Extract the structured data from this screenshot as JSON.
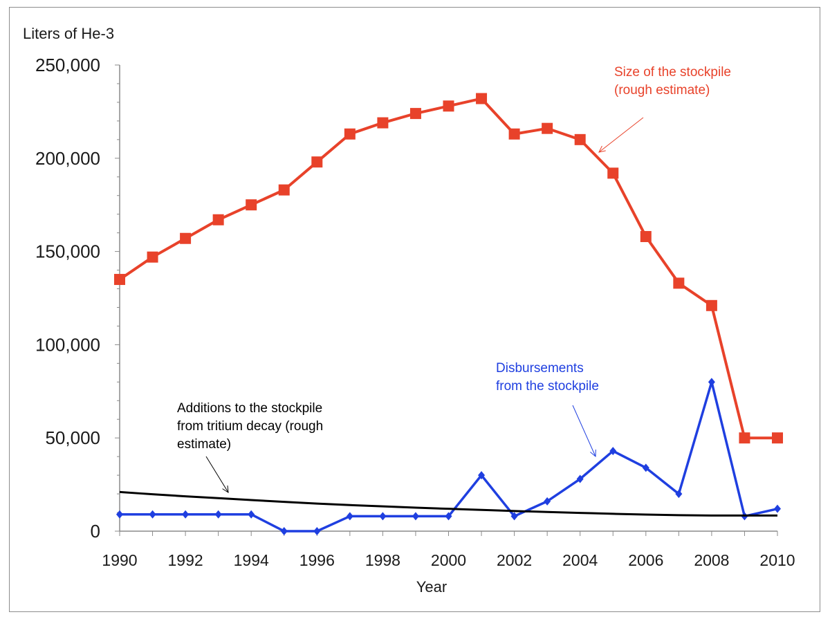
{
  "chart_data": {
    "type": "line",
    "title": "",
    "ylabel": "Liters of He-3",
    "xlabel": "Year",
    "xlim": [
      1990,
      2010
    ],
    "ylim": [
      0,
      250000
    ],
    "x_ticks": [
      "1990",
      "1992",
      "1994",
      "1996",
      "1998",
      "2000",
      "2002",
      "2004",
      "2006",
      "2008",
      "2010"
    ],
    "y_ticks": [
      "0",
      "50,000",
      "100,000",
      "150,000",
      "200,000",
      "250,000"
    ],
    "grid": false,
    "legend": "none",
    "x": [
      1990,
      1991,
      1992,
      1993,
      1994,
      1995,
      1996,
      1997,
      1998,
      1999,
      2000,
      2001,
      2002,
      2003,
      2004,
      2005,
      2006,
      2007,
      2008,
      2009,
      2010
    ],
    "series": [
      {
        "name": "Size of the stockpile (rough estimate)",
        "color": "#e8422a",
        "marker": "square",
        "values": [
          135000,
          147000,
          157000,
          167000,
          175000,
          183000,
          198000,
          213000,
          219000,
          224000,
          228000,
          232000,
          213000,
          216000,
          210000,
          192000,
          158000,
          133000,
          121000,
          50000,
          50000
        ]
      },
      {
        "name": "Disbursements from the stockpile",
        "color": "#1f3fe0",
        "marker": "diamond",
        "values": [
          9000,
          9000,
          9000,
          9000,
          9000,
          0,
          0,
          8000,
          8000,
          8000,
          8000,
          30000,
          8000,
          16000,
          28000,
          43000,
          34000,
          20000,
          80000,
          8000,
          12000
        ]
      },
      {
        "name": "Additions to the stockpile from tritium decay (rough estimate)",
        "color": "#000000",
        "marker": "none",
        "values": [
          21000,
          19800,
          18700,
          17700,
          16700,
          15700,
          14800,
          14000,
          13300,
          12600,
          12000,
          11400,
          10800,
          10300,
          9800,
          9300,
          8900,
          8600,
          8400,
          8400,
          8400
        ]
      }
    ],
    "annotations": [
      {
        "lines": [
          "Size of the stockpile",
          "(rough estimate)"
        ],
        "color": "#e8422a"
      },
      {
        "lines": [
          "Disbursements",
          "from the stockpile"
        ],
        "color": "#1f3fe0"
      },
      {
        "lines": [
          "Additions to the stockpile",
          "from tritium decay (rough",
          "estimate)"
        ],
        "color": "#000000"
      }
    ]
  }
}
